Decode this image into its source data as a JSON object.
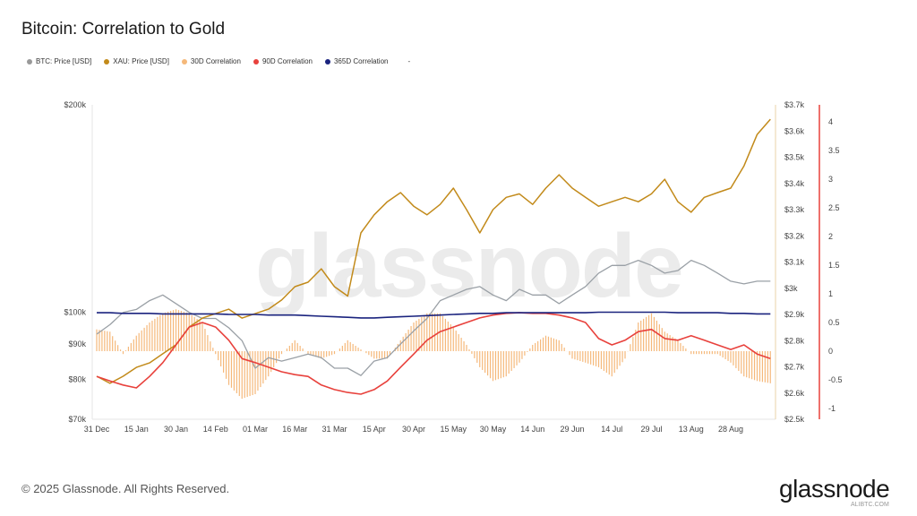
{
  "title": "Bitcoin: Correlation to Gold",
  "legend": [
    {
      "label": "BTC: Price [USD]",
      "color": "#999999"
    },
    {
      "label": "XAU: Price [USD]",
      "color": "#c28a1a"
    },
    {
      "label": "30D Correlation",
      "color": "#f5b87a"
    },
    {
      "label": "90D Correlation",
      "color": "#e8413c"
    },
    {
      "label": "365D Correlation",
      "color": "#1a237e"
    },
    {
      "label": "-",
      "color": ""
    }
  ],
  "watermark": "glassnode",
  "footer": "© 2025 Glassnode. All Rights Reserved.",
  "logo": "glassnode",
  "site_watermark": "ALIBTC.COM",
  "chart_data": {
    "type": "line",
    "title": "Bitcoin: Correlation to Gold",
    "x_start": "2024-12-31",
    "x_step_days": 5,
    "x_tick_labels": [
      "31 Dec",
      "15 Jan",
      "30 Jan",
      "14 Feb",
      "01 Mar",
      "16 Mar",
      "31 Mar",
      "15 Apr",
      "30 Apr",
      "15 May",
      "30 May",
      "14 Jun",
      "29 Jun",
      "14 Jul",
      "29 Jul",
      "13 Aug",
      "28 Aug"
    ],
    "axes": {
      "btc": {
        "scale": "log",
        "range": [
          70000,
          200000
        ],
        "tick_labels": [
          [
            "$200k",
            200000
          ],
          [
            "$100k",
            100000
          ],
          [
            "$90k",
            90000
          ],
          [
            "$80k",
            80000
          ],
          [
            "$70k",
            70000
          ]
        ]
      },
      "xau": {
        "range": [
          2500,
          3700
        ],
        "tick_labels": [
          "$2.5k",
          "$2.6k",
          "$2.7k",
          "$2.8k",
          "$2.9k",
          "$3k",
          "$3.1k",
          "$3.2k",
          "$3.3k",
          "$3.4k",
          "$3.5k",
          "$3.6k",
          "$3.7k"
        ]
      },
      "corr": {
        "range": [
          -1,
          4
        ],
        "tick_labels": [
          "-1",
          "-0.5",
          "0",
          "0.5",
          "1",
          "1.5",
          "2",
          "2.5",
          "3",
          "3.5",
          "4"
        ]
      }
    },
    "series": [
      {
        "name": "BTC: Price [USD]",
        "axis": "btc",
        "unit": "k",
        "values": [
          93,
          96,
          100,
          101,
          104,
          106,
          103,
          100,
          98,
          98,
          95,
          91,
          83,
          86,
          85,
          86,
          87,
          86,
          83,
          83,
          81,
          85,
          86,
          90,
          94,
          98,
          104,
          106,
          108,
          109,
          106,
          104,
          108,
          106,
          106,
          103,
          106,
          109,
          114,
          117,
          117,
          119,
          117,
          114,
          115,
          119,
          117,
          114,
          111,
          110,
          111,
          111
        ]
      },
      {
        "name": "XAU: Price [USD]",
        "axis": "xau",
        "values": [
          2664,
          2637,
          2664,
          2698,
          2715,
          2750,
          2784,
          2852,
          2886,
          2903,
          2920,
          2886,
          2903,
          2920,
          2955,
          3006,
          3023,
          3074,
          3006,
          2970,
          3211,
          3280,
          3330,
          3365,
          3313,
          3280,
          3320,
          3382,
          3300,
          3211,
          3300,
          3347,
          3360,
          3320,
          3382,
          3433,
          3382,
          3347,
          3313,
          3330,
          3347,
          3330,
          3360,
          3416,
          3330,
          3290,
          3347,
          3365,
          3382,
          3467,
          3587,
          3645
        ]
      },
      {
        "name": "30D Correlation",
        "axis": "corr",
        "type": "bar",
        "values": [
          0.38,
          0.34,
          -0.05,
          0.27,
          0.5,
          0.66,
          0.73,
          0.66,
          0.5,
          -0.05,
          -0.59,
          -0.83,
          -0.75,
          -0.44,
          -0.05,
          0.19,
          -0.05,
          -0.13,
          -0.05,
          0.19,
          0.03,
          -0.13,
          -0.13,
          0.19,
          0.5,
          0.66,
          0.66,
          0.42,
          0.11,
          -0.28,
          -0.52,
          -0.44,
          -0.2,
          0.11,
          0.27,
          0.19,
          -0.13,
          -0.2,
          -0.28,
          -0.44,
          -0.13,
          0.5,
          0.66,
          0.34,
          0.19,
          -0.05,
          -0.05,
          -0.05,
          -0.2,
          -0.44,
          -0.52,
          -0.56
        ]
      },
      {
        "name": "90D Correlation",
        "axis": "corr",
        "values": [
          -0.44,
          -0.52,
          -0.59,
          -0.64,
          -0.44,
          -0.2,
          0.11,
          0.42,
          0.5,
          0.42,
          0.19,
          -0.13,
          -0.2,
          -0.28,
          -0.36,
          -0.41,
          -0.44,
          -0.59,
          -0.67,
          -0.72,
          -0.75,
          -0.67,
          -0.52,
          -0.28,
          -0.05,
          0.19,
          0.34,
          0.42,
          0.5,
          0.58,
          0.63,
          0.66,
          0.67,
          0.66,
          0.66,
          0.63,
          0.58,
          0.5,
          0.22,
          0.11,
          0.19,
          0.34,
          0.38,
          0.22,
          0.19,
          0.27,
          0.19,
          0.11,
          0.03,
          0.11,
          -0.05,
          -0.13
        ]
      },
      {
        "name": "365D Correlation",
        "axis": "corr",
        "values": [
          0.67,
          0.67,
          0.66,
          0.66,
          0.66,
          0.65,
          0.65,
          0.65,
          0.65,
          0.65,
          0.64,
          0.64,
          0.64,
          0.63,
          0.63,
          0.63,
          0.62,
          0.61,
          0.6,
          0.59,
          0.58,
          0.58,
          0.59,
          0.6,
          0.61,
          0.62,
          0.63,
          0.64,
          0.65,
          0.66,
          0.66,
          0.67,
          0.67,
          0.67,
          0.67,
          0.67,
          0.67,
          0.67,
          0.68,
          0.68,
          0.68,
          0.68,
          0.68,
          0.68,
          0.67,
          0.67,
          0.67,
          0.67,
          0.66,
          0.66,
          0.65,
          0.65
        ]
      }
    ]
  }
}
